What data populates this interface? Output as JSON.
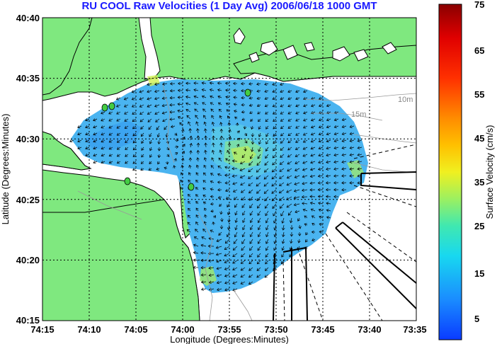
{
  "title": "RU COOL Raw Velocities (1 Day Avg) 2006/06/18 1000 GMT",
  "axes": {
    "xlabel": "Longitude (Degrees:Minutes)",
    "ylabel": "Latitude (Degrees:Minutes)",
    "x_ticks": [
      "74:15",
      "74:10",
      "74:05",
      "74:00",
      "73:55",
      "73:50",
      "73:45",
      "73:40",
      "73:35"
    ],
    "y_ticks": [
      "40:40",
      "40:35",
      "40:30",
      "40:25",
      "40:20",
      "40:15"
    ]
  },
  "colorbar": {
    "label": "Surface Velocity (cm/s)",
    "ticks": [
      "75",
      "65",
      "55",
      "45",
      "35",
      "25",
      "15",
      "5"
    ],
    "range": [
      0,
      80
    ]
  },
  "contour_labels": [
    "10m",
    "15m"
  ],
  "colors": {
    "land": "#7fe87f",
    "water": "#ffffff",
    "title": "#1a1aff",
    "vector": "#000000",
    "station_marker": "#44cc44"
  }
}
